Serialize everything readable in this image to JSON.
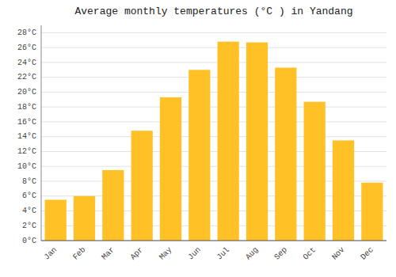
{
  "chart_data": {
    "type": "bar",
    "title": "Average monthly temperatures (°C ) in Yandang",
    "categories": [
      "Jan",
      "Feb",
      "Mar",
      "Apr",
      "May",
      "Jun",
      "Jul",
      "Aug",
      "Sep",
      "Oct",
      "Nov",
      "Dec"
    ],
    "values": [
      5.5,
      6.0,
      9.5,
      14.8,
      19.3,
      23.0,
      26.8,
      26.7,
      23.3,
      18.7,
      13.5,
      7.8
    ],
    "color": "#FFC125",
    "ylim": [
      0,
      29
    ],
    "yticks": [
      {
        "value": 0,
        "label": "0°C"
      },
      {
        "value": 2,
        "label": "2°C"
      },
      {
        "value": 4,
        "label": "4°C"
      },
      {
        "value": 6,
        "label": "6°C"
      },
      {
        "value": 8,
        "label": "8°C"
      },
      {
        "value": 10,
        "label": "10°C"
      },
      {
        "value": 12,
        "label": "12°C"
      },
      {
        "value": 14,
        "label": "14°C"
      },
      {
        "value": 16,
        "label": "16°C"
      },
      {
        "value": 18,
        "label": "18°C"
      },
      {
        "value": 20,
        "label": "20°C"
      },
      {
        "value": 22,
        "label": "22°C"
      },
      {
        "value": 24,
        "label": "24°C"
      },
      {
        "value": 26,
        "label": "26°C"
      },
      {
        "value": 28,
        "label": "28°C"
      }
    ],
    "grid": true
  }
}
